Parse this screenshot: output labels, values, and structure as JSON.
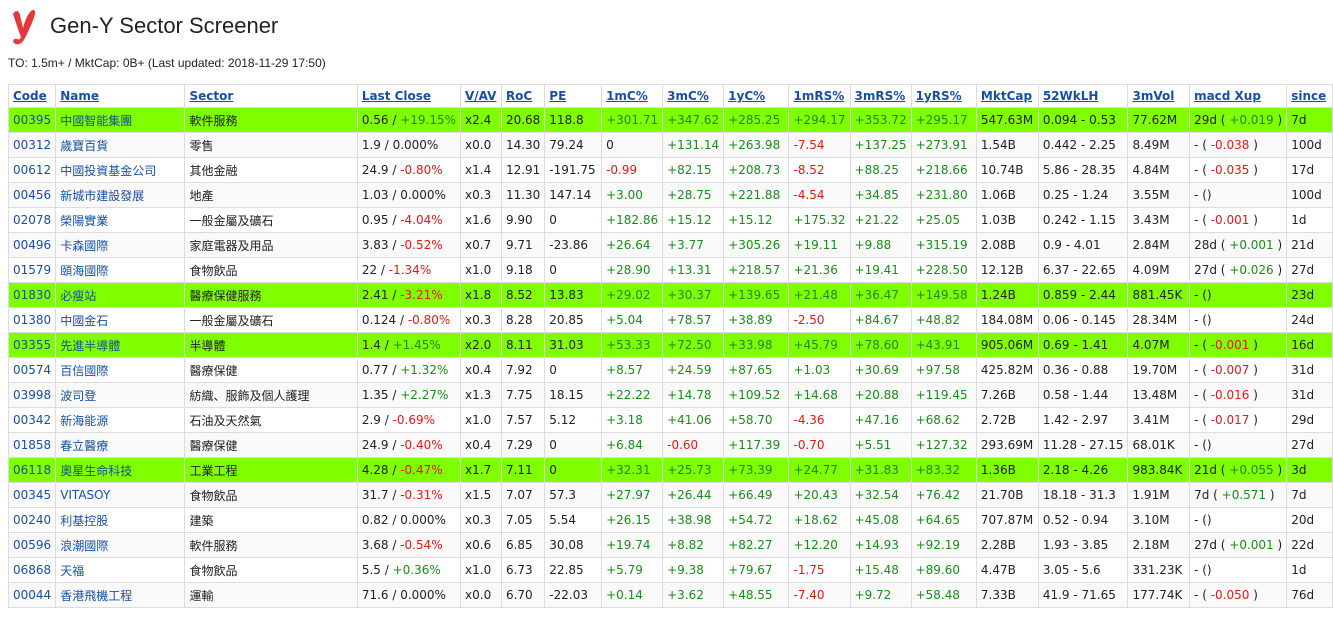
{
  "app": {
    "title": "Gen-Y Sector Screener",
    "subtitle": "TO: 1.5m+ / MktCap: 0B+ (Last updated: 2018-11-29 17:50)"
  },
  "colors": {
    "highlight": "#7fff00",
    "positive": "#1c8a1c",
    "negative": "#e01818",
    "link": "#1a4fa0"
  },
  "columns": [
    "Code",
    "Name",
    "Sector",
    "Last Close",
    "V/AV",
    "RoC",
    "PE",
    "1mC%",
    "3mC%",
    "1yC%",
    "1mRS%",
    "3mRS%",
    "1yRS%",
    "MktCap",
    "52WkLH",
    "3mVol",
    "macd Xup",
    "since"
  ],
  "rows": [
    {
      "hl": true,
      "code": "00395",
      "name": "中國智能集團",
      "sector": "軟件服務",
      "close": "0.56",
      "chg": "+19.15%",
      "vav": "x2.4",
      "roc": "20.68",
      "pe": "118.8",
      "m1": "+301.71",
      "m3": "+347.62",
      "y1": "+285.25",
      "rs1": "+294.17",
      "rs3": "+353.72",
      "rsy": "+295.17",
      "cap": "547.63M",
      "wk": "0.094 - 0.53",
      "vol": "77.62M",
      "macd": "29d",
      "macdv": "+0.019",
      "since": "7d"
    },
    {
      "hl": false,
      "code": "00312",
      "name": "歲寶百貨",
      "sector": "零售",
      "close": "1.9",
      "chg": "0.000%",
      "vav": "x0.0",
      "roc": "14.30",
      "pe": "79.24",
      "m1": "0",
      "m3": "+131.14",
      "y1": "+263.98",
      "rs1": "-7.54",
      "rs3": "+137.25",
      "rsy": "+273.91",
      "cap": "1.54B",
      "wk": "0.442 - 2.25",
      "vol": "8.49M",
      "macd": "-",
      "macdv": "-0.038",
      "since": "100d"
    },
    {
      "hl": false,
      "code": "00612",
      "name": "中國投資基金公司",
      "sector": "其他金融",
      "close": "24.9",
      "chg": "-0.80%",
      "vav": "x1.4",
      "roc": "12.91",
      "pe": "-191.75",
      "m1": "-0.99",
      "m3": "+82.15",
      "y1": "+208.73",
      "rs1": "-8.52",
      "rs3": "+88.25",
      "rsy": "+218.66",
      "cap": "10.74B",
      "wk": "5.86 - 28.35",
      "vol": "4.84M",
      "macd": "-",
      "macdv": "-0.035",
      "since": "17d"
    },
    {
      "hl": false,
      "code": "00456",
      "name": "新城市建設發展",
      "sector": "地產",
      "close": "1.03",
      "chg": "0.000%",
      "vav": "x0.3",
      "roc": "11.30",
      "pe": "147.14",
      "m1": "+3.00",
      "m3": "+28.75",
      "y1": "+221.88",
      "rs1": "-4.54",
      "rs3": "+34.85",
      "rsy": "+231.80",
      "cap": "1.06B",
      "wk": "0.25 - 1.24",
      "vol": "3.55M",
      "macd": "-",
      "macdv": "",
      "since": "100d"
    },
    {
      "hl": false,
      "code": "02078",
      "name": "榮陽實業",
      "sector": "一般金屬及礦石",
      "close": "0.95",
      "chg": "-4.04%",
      "vav": "x1.6",
      "roc": "9.90",
      "pe": "0",
      "m1": "+182.86",
      "m3": "+15.12",
      "y1": "+15.12",
      "rs1": "+175.32",
      "rs3": "+21.22",
      "rsy": "+25.05",
      "cap": "1.03B",
      "wk": "0.242 - 1.15",
      "vol": "3.43M",
      "macd": "-",
      "macdv": "-0.001",
      "since": "1d"
    },
    {
      "hl": false,
      "code": "00496",
      "name": "卡森國際",
      "sector": "家庭電器及用品",
      "close": "3.83",
      "chg": "-0.52%",
      "vav": "x0.7",
      "roc": "9.71",
      "pe": "-23.86",
      "m1": "+26.64",
      "m3": "+3.77",
      "y1": "+305.26",
      "rs1": "+19.11",
      "rs3": "+9.88",
      "rsy": "+315.19",
      "cap": "2.08B",
      "wk": "0.9 - 4.01",
      "vol": "2.84M",
      "macd": "28d",
      "macdv": "+0.001",
      "since": "21d"
    },
    {
      "hl": false,
      "code": "01579",
      "name": "頤海國際",
      "sector": "食物飲品",
      "close": "22",
      "chg": "-1.34%",
      "vav": "x1.0",
      "roc": "9.18",
      "pe": "0",
      "m1": "+28.90",
      "m3": "+13.31",
      "y1": "+218.57",
      "rs1": "+21.36",
      "rs3": "+19.41",
      "rsy": "+228.50",
      "cap": "12.12B",
      "wk": "6.37 - 22.65",
      "vol": "4.09M",
      "macd": "27d",
      "macdv": "+0.026",
      "since": "27d"
    },
    {
      "hl": true,
      "code": "01830",
      "name": "必瘦站",
      "sector": "醫療保健服務",
      "close": "2.41",
      "chg": "-3.21%",
      "vav": "x1.8",
      "roc": "8.52",
      "pe": "13.83",
      "m1": "+29.02",
      "m3": "+30.37",
      "y1": "+139.65",
      "rs1": "+21.48",
      "rs3": "+36.47",
      "rsy": "+149.58",
      "cap": "1.24B",
      "wk": "0.859 - 2.44",
      "vol": "881.45K",
      "macd": "-",
      "macdv": "",
      "since": "23d"
    },
    {
      "hl": false,
      "code": "01380",
      "name": "中國金石",
      "sector": "一般金屬及礦石",
      "close": "0.124",
      "chg": "-0.80%",
      "vav": "x0.3",
      "roc": "8.28",
      "pe": "20.85",
      "m1": "+5.04",
      "m3": "+78.57",
      "y1": "+38.89",
      "rs1": "-2.50",
      "rs3": "+84.67",
      "rsy": "+48.82",
      "cap": "184.08M",
      "wk": "0.06 - 0.145",
      "vol": "28.34M",
      "macd": "-",
      "macdv": "",
      "since": "24d"
    },
    {
      "hl": true,
      "code": "03355",
      "name": "先進半導體",
      "sector": "半導體",
      "close": "1.4",
      "chg": "+1.45%",
      "vav": "x2.0",
      "roc": "8.11",
      "pe": "31.03",
      "m1": "+53.33",
      "m3": "+72.50",
      "y1": "+33.98",
      "rs1": "+45.79",
      "rs3": "+78.60",
      "rsy": "+43.91",
      "cap": "905.06M",
      "wk": "0.69 - 1.41",
      "vol": "4.07M",
      "macd": "-",
      "macdv": "-0.001",
      "since": "16d"
    },
    {
      "hl": false,
      "code": "00574",
      "name": "百信國際",
      "sector": "醫療保健",
      "close": "0.77",
      "chg": "+1.32%",
      "vav": "x0.4",
      "roc": "7.92",
      "pe": "0",
      "m1": "+8.57",
      "m3": "+24.59",
      "y1": "+87.65",
      "rs1": "+1.03",
      "rs3": "+30.69",
      "rsy": "+97.58",
      "cap": "425.82M",
      "wk": "0.36 - 0.88",
      "vol": "19.70M",
      "macd": "-",
      "macdv": "-0.007",
      "since": "31d"
    },
    {
      "hl": false,
      "code": "03998",
      "name": "波司登",
      "sector": "紡織、服飾及個人護理",
      "close": "1.35",
      "chg": "+2.27%",
      "vav": "x1.3",
      "roc": "7.75",
      "pe": "18.15",
      "m1": "+22.22",
      "m3": "+14.78",
      "y1": "+109.52",
      "rs1": "+14.68",
      "rs3": "+20.88",
      "rsy": "+119.45",
      "cap": "7.26B",
      "wk": "0.58 - 1.44",
      "vol": "13.48M",
      "macd": "-",
      "macdv": "-0.016",
      "since": "31d"
    },
    {
      "hl": false,
      "code": "00342",
      "name": "新海能源",
      "sector": "石油及天然氣",
      "close": "2.9",
      "chg": "-0.69%",
      "vav": "x1.0",
      "roc": "7.57",
      "pe": "5.12",
      "m1": "+3.18",
      "m3": "+41.06",
      "y1": "+58.70",
      "rs1": "-4.36",
      "rs3": "+47.16",
      "rsy": "+68.62",
      "cap": "2.72B",
      "wk": "1.42 - 2.97",
      "vol": "3.41M",
      "macd": "-",
      "macdv": "-0.017",
      "since": "29d"
    },
    {
      "hl": false,
      "code": "01858",
      "name": "春立醫療",
      "sector": "醫療保健",
      "close": "24.9",
      "chg": "-0.40%",
      "vav": "x0.4",
      "roc": "7.29",
      "pe": "0",
      "m1": "+6.84",
      "m3": "-0.60",
      "y1": "+117.39",
      "rs1": "-0.70",
      "rs3": "+5.51",
      "rsy": "+127.32",
      "cap": "293.69M",
      "wk": "11.28 - 27.15",
      "vol": "68.01K",
      "macd": "-",
      "macdv": "",
      "since": "27d"
    },
    {
      "hl": true,
      "code": "06118",
      "name": "奧星生命科技",
      "sector": "工業工程",
      "close": "4.28",
      "chg": "-0.47%",
      "vav": "x1.7",
      "roc": "7.11",
      "pe": "0",
      "m1": "+32.31",
      "m3": "+25.73",
      "y1": "+73.39",
      "rs1": "+24.77",
      "rs3": "+31.83",
      "rsy": "+83.32",
      "cap": "1.36B",
      "wk": "2.18 - 4.26",
      "vol": "983.84K",
      "macd": "21d",
      "macdv": "+0.055",
      "since": "3d"
    },
    {
      "hl": false,
      "code": "00345",
      "name": "VITASOY",
      "sector": "食物飲品",
      "close": "31.7",
      "chg": "-0.31%",
      "vav": "x1.5",
      "roc": "7.07",
      "pe": "57.3",
      "m1": "+27.97",
      "m3": "+26.44",
      "y1": "+66.49",
      "rs1": "+20.43",
      "rs3": "+32.54",
      "rsy": "+76.42",
      "cap": "21.70B",
      "wk": "18.18 - 31.3",
      "vol": "1.91M",
      "macd": "7d",
      "macdv": "+0.571",
      "since": "7d"
    },
    {
      "hl": false,
      "code": "00240",
      "name": "利基控股",
      "sector": "建築",
      "close": "0.82",
      "chg": "0.000%",
      "vav": "x0.3",
      "roc": "7.05",
      "pe": "5.54",
      "m1": "+26.15",
      "m3": "+38.98",
      "y1": "+54.72",
      "rs1": "+18.62",
      "rs3": "+45.08",
      "rsy": "+64.65",
      "cap": "707.87M",
      "wk": "0.52 - 0.94",
      "vol": "3.10M",
      "macd": "-",
      "macdv": "",
      "since": "20d"
    },
    {
      "hl": false,
      "code": "00596",
      "name": "浪潮國際",
      "sector": "軟件服務",
      "close": "3.68",
      "chg": "-0.54%",
      "vav": "x0.6",
      "roc": "6.85",
      "pe": "30.08",
      "m1": "+19.74",
      "m3": "+8.82",
      "y1": "+82.27",
      "rs1": "+12.20",
      "rs3": "+14.93",
      "rsy": "+92.19",
      "cap": "2.28B",
      "wk": "1.93 - 3.85",
      "vol": "2.18M",
      "macd": "27d",
      "macdv": "+0.001",
      "since": "22d"
    },
    {
      "hl": false,
      "code": "06868",
      "name": "天福",
      "sector": "食物飲品",
      "close": "5.5",
      "chg": "+0.36%",
      "vav": "x1.0",
      "roc": "6.73",
      "pe": "22.85",
      "m1": "+5.79",
      "m3": "+9.38",
      "y1": "+79.67",
      "rs1": "-1.75",
      "rs3": "+15.48",
      "rsy": "+89.60",
      "cap": "4.47B",
      "wk": "3.05 - 5.6",
      "vol": "331.23K",
      "macd": "-",
      "macdv": "",
      "since": "1d"
    },
    {
      "hl": false,
      "code": "00044",
      "name": "香港飛機工程",
      "sector": "運輸",
      "close": "71.6",
      "chg": "0.000%",
      "vav": "x0.0",
      "roc": "6.70",
      "pe": "-22.03",
      "m1": "+0.14",
      "m3": "+3.62",
      "y1": "+48.55",
      "rs1": "-7.40",
      "rs3": "+9.72",
      "rsy": "+58.48",
      "cap": "7.33B",
      "wk": "41.9 - 71.65",
      "vol": "177.74K",
      "macd": "-",
      "macdv": "-0.050",
      "since": "76d"
    }
  ]
}
